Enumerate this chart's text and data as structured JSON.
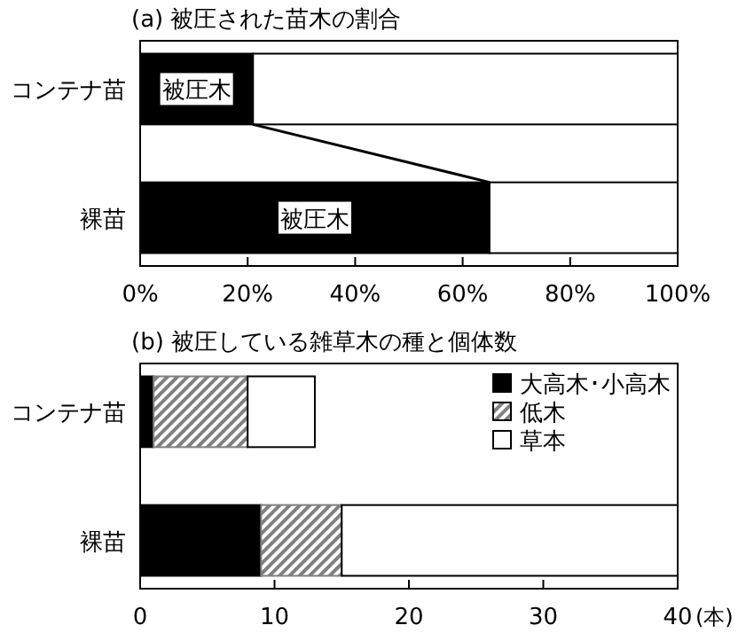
{
  "chart_data": [
    {
      "type": "bar",
      "title": "(a) 被圧された苗木の割合",
      "orientation": "horizontal",
      "stacked": true,
      "categories": [
        "コンテナ苗",
        "裸苗"
      ],
      "series": [
        {
          "name": "被圧木",
          "color": "#000000",
          "values": [
            21,
            65
          ]
        },
        {
          "color": "#ffffff",
          "values": [
            79,
            35
          ]
        }
      ],
      "xlim": [
        0,
        100
      ],
      "xticks": [
        {
          "value": 0,
          "label": "0%"
        },
        {
          "value": 20,
          "label": "20%"
        },
        {
          "value": 40,
          "label": "40%"
        },
        {
          "value": 60,
          "label": "60%"
        },
        {
          "value": 80,
          "label": "80%"
        },
        {
          "value": 100,
          "label": "100%"
        }
      ],
      "legend": false
    },
    {
      "type": "bar",
      "title": "(b) 被圧している雑草木の種と個体数",
      "orientation": "horizontal",
      "stacked": true,
      "categories": [
        "コンテナ苗",
        "裸苗"
      ],
      "xlabel": "(本)",
      "series": [
        {
          "name": "大高木･小高木",
          "color": "#000000",
          "values": [
            1,
            9
          ]
        },
        {
          "name": "低木",
          "color": "#808080",
          "values": [
            7,
            6
          ]
        },
        {
          "name": "草本",
          "color": "#ffffff",
          "values": [
            5,
            25
          ]
        }
      ],
      "xlim": [
        0,
        40
      ],
      "xticks": [
        0,
        10,
        20,
        30,
        40
      ],
      "legend": "top right"
    }
  ]
}
